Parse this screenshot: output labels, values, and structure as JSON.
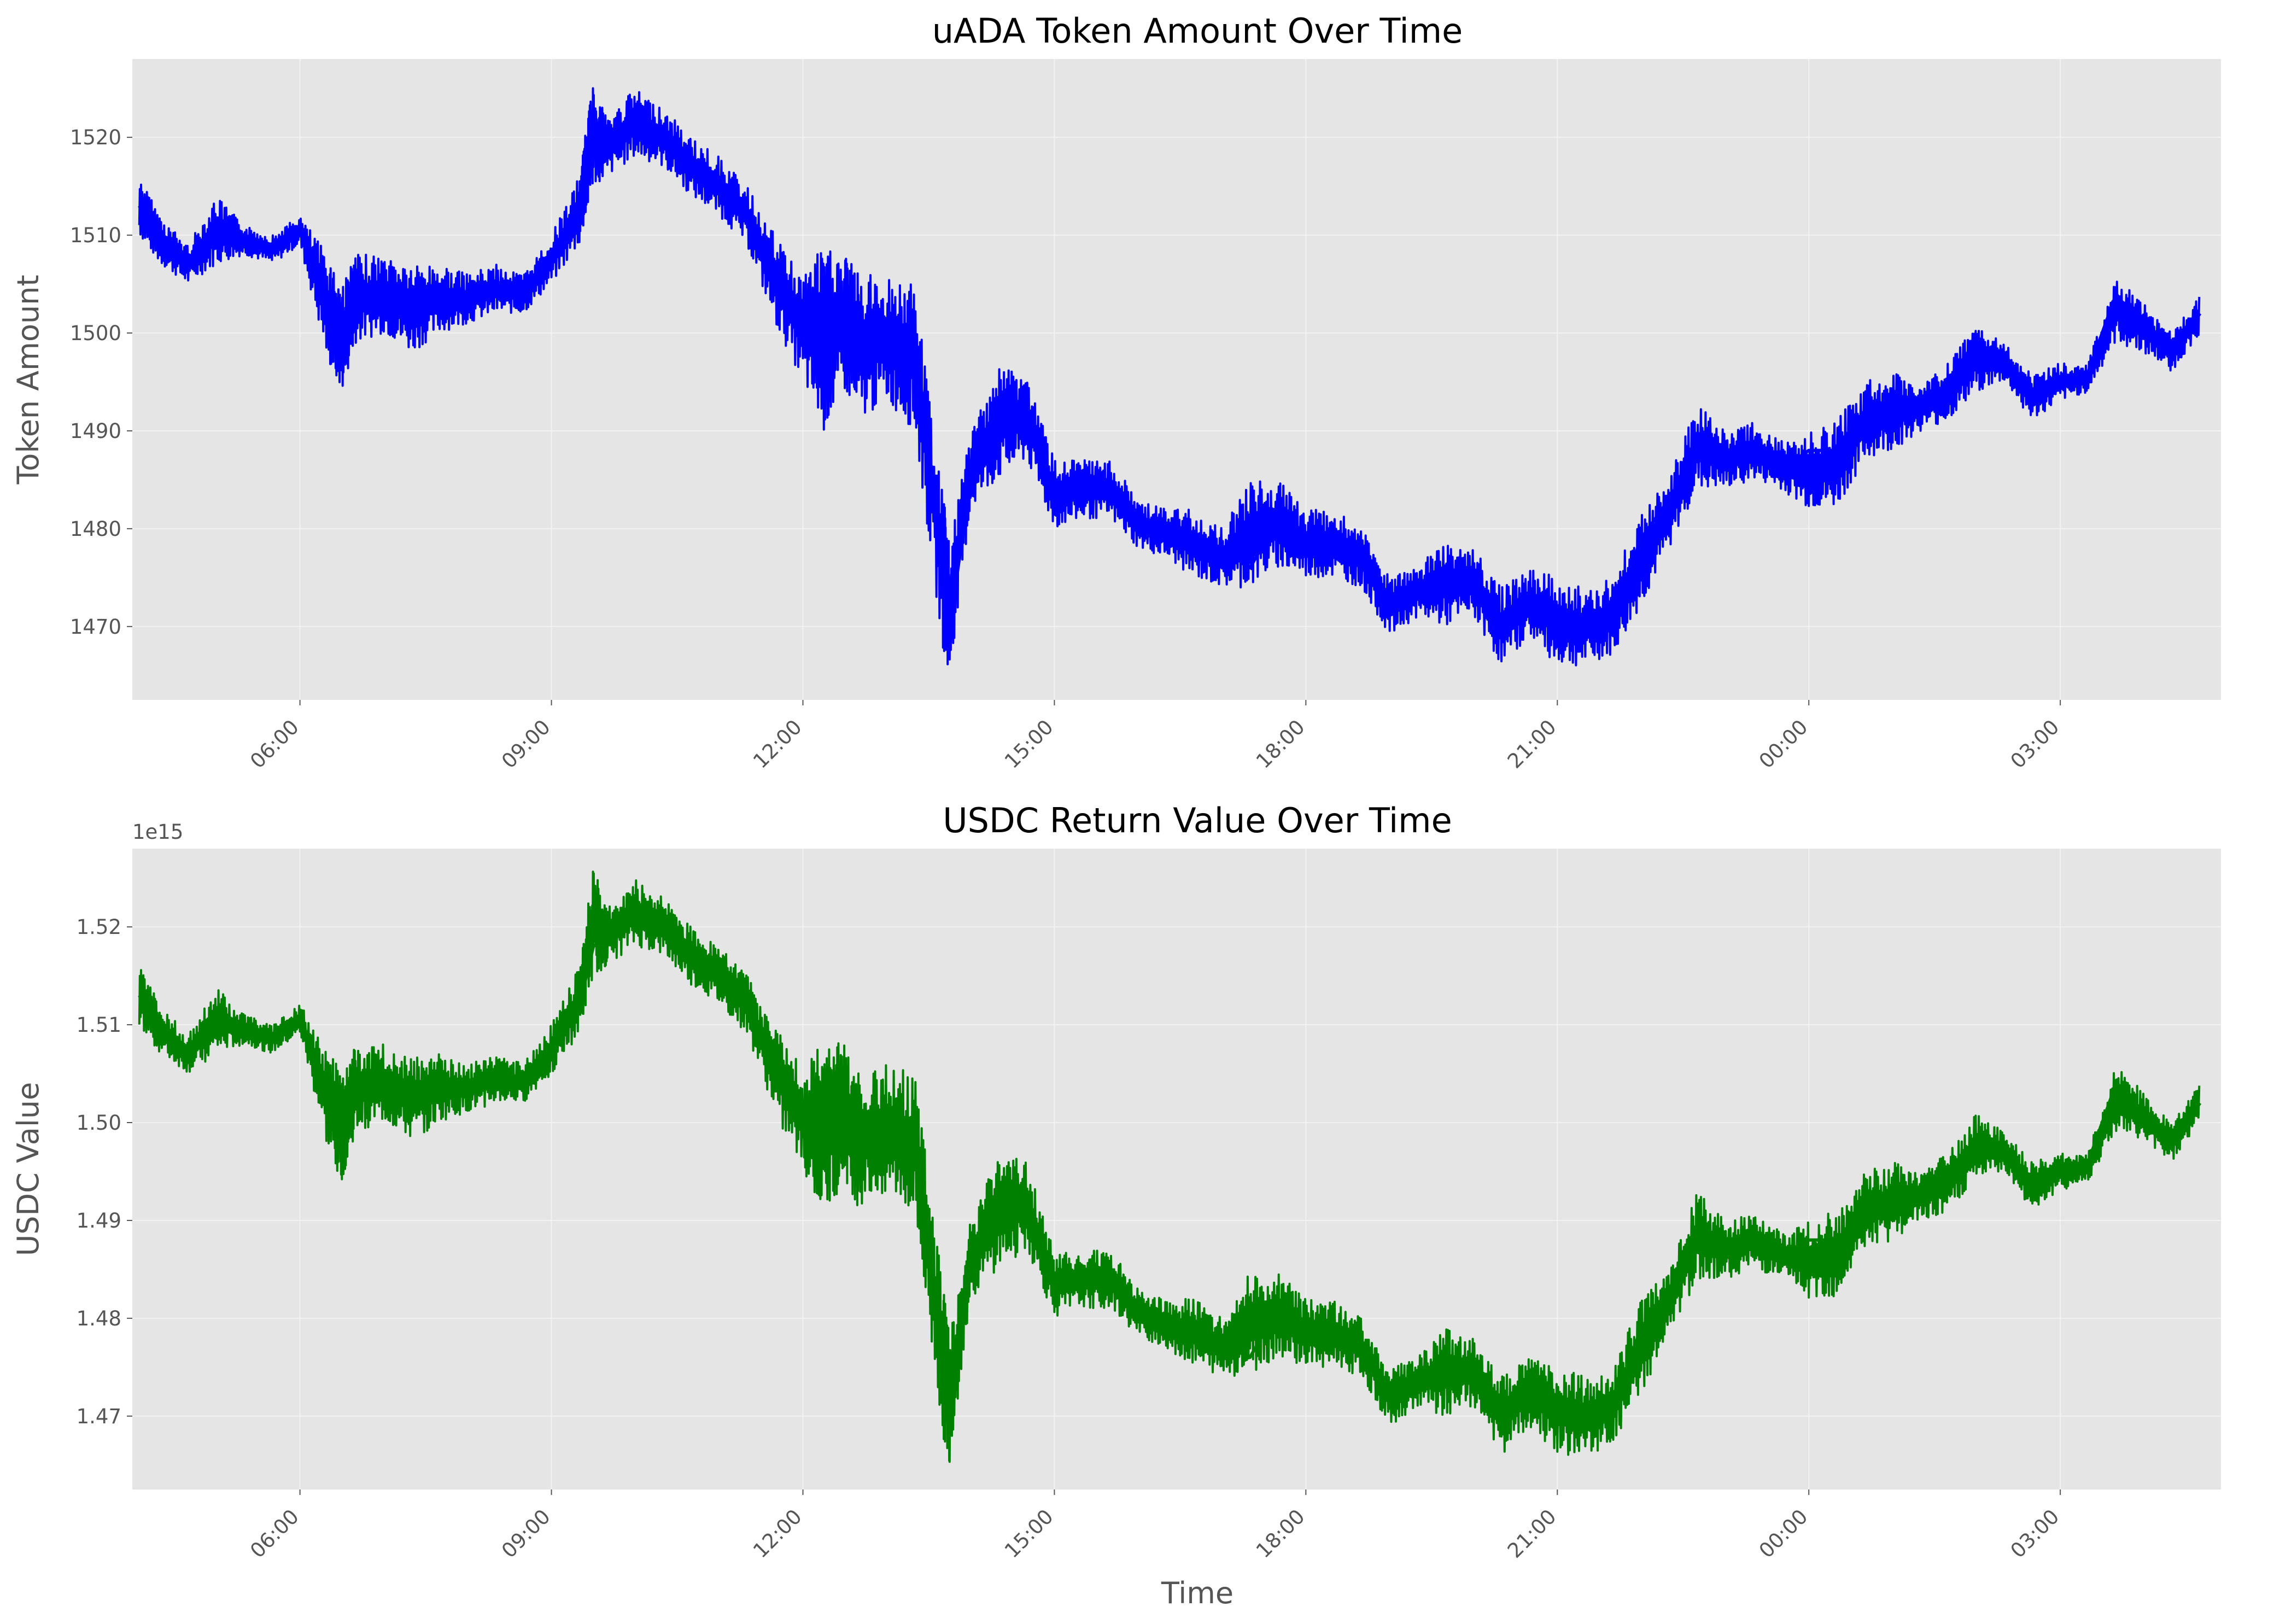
{
  "chart_data": [
    {
      "type": "line",
      "title": "uADA Token Amount Over Time",
      "xlabel": "",
      "ylabel": "Token Amount",
      "color": "#0000ff",
      "x_ticks": [
        "06:00",
        "09:00",
        "12:00",
        "15:00",
        "18:00",
        "21:00",
        "00:00",
        "03:00"
      ],
      "y_ticks": [
        "1470",
        "1480",
        "1490",
        "1500",
        "1510",
        "1520"
      ],
      "xlim": [
        "04:00",
        "28:55"
      ],
      "ylim": [
        1462.5,
        1528
      ],
      "grid": true,
      "x": [
        "04:05",
        "04:20",
        "04:40",
        "05:00",
        "05:20",
        "05:40",
        "06:00",
        "06:20",
        "06:30",
        "06:40",
        "07:00",
        "07:20",
        "07:40",
        "08:00",
        "08:20",
        "08:40",
        "09:00",
        "09:20",
        "09:30",
        "09:40",
        "10:00",
        "10:20",
        "10:40",
        "11:00",
        "11:20",
        "11:40",
        "12:00",
        "12:15",
        "12:30",
        "12:40",
        "13:00",
        "13:20",
        "13:40",
        "13:45",
        "14:00",
        "14:20",
        "14:40",
        "15:00",
        "15:20",
        "15:40",
        "16:00",
        "16:20",
        "16:40",
        "17:00",
        "17:20",
        "17:40",
        "18:00",
        "18:20",
        "18:40",
        "19:00",
        "19:20",
        "19:40",
        "20:00",
        "20:20",
        "20:40",
        "21:00",
        "21:20",
        "21:40",
        "22:00",
        "22:20",
        "22:40",
        "23:00",
        "23:20",
        "23:40",
        "24:00",
        "24:20",
        "24:40",
        "25:00",
        "25:20",
        "25:40",
        "26:00",
        "26:20",
        "26:40",
        "27:00",
        "27:20",
        "27:40",
        "28:00",
        "28:20",
        "28:40"
      ],
      "y": [
        1513,
        1509,
        1507,
        1511,
        1510,
        1509,
        1511,
        1503,
        1499,
        1504,
        1505,
        1503,
        1504,
        1503,
        1505,
        1504,
        1507,
        1512,
        1518,
        1519,
        1522,
        1520,
        1517,
        1515,
        1512,
        1507,
        1502,
        1500,
        1502,
        1499,
        1501,
        1500,
        1476,
        1470,
        1485,
        1489,
        1492,
        1484,
        1485,
        1485,
        1481,
        1480,
        1479,
        1478,
        1476,
        1481,
        1478,
        1478,
        1477,
        1472,
        1474,
        1473,
        1475,
        1470,
        1473,
        1472,
        1471,
        1471,
        1479,
        1483,
        1488,
        1487,
        1488,
        1486,
        1488,
        1488,
        1491,
        1491,
        1493,
        1494,
        1497,
        1498,
        1493,
        1495,
        1496,
        1504,
        1500,
        1498,
        1502
      ],
      "series": [
        {
          "values_band": [
            [
              1510,
              1516
            ],
            [
              1507,
              1512
            ],
            [
              1505,
              1509
            ],
            [
              1507,
              1514
            ],
            [
              1508,
              1511
            ],
            [
              1507,
              1510
            ],
            [
              1509,
              1512
            ],
            [
              1497,
              1508
            ],
            [
              1494,
              1505
            ],
            [
              1499,
              1508
            ],
            [
              1500,
              1508
            ],
            [
              1498,
              1507
            ],
            [
              1500,
              1507
            ],
            [
              1501,
              1506
            ],
            [
              1502,
              1507
            ],
            [
              1502,
              1506
            ],
            [
              1505,
              1510
            ],
            [
              1509,
              1516
            ],
            [
              1515,
              1526
            ],
            [
              1516,
              1522
            ],
            [
              1518,
              1525
            ],
            [
              1517,
              1523
            ],
            [
              1514,
              1520
            ],
            [
              1512,
              1518
            ],
            [
              1509,
              1515
            ],
            [
              1501,
              1510
            ],
            [
              1495,
              1506
            ],
            [
              1490,
              1509
            ],
            [
              1494,
              1508
            ],
            [
              1491,
              1506
            ],
            [
              1493,
              1506
            ],
            [
              1490,
              1505
            ],
            [
              1468,
              1484
            ],
            [
              1465,
              1478
            ],
            [
              1482,
              1490
            ],
            [
              1485,
              1497
            ],
            [
              1487,
              1496
            ],
            [
              1480,
              1487
            ],
            [
              1481,
              1487
            ],
            [
              1481,
              1487
            ],
            [
              1478,
              1483
            ],
            [
              1477,
              1482
            ],
            [
              1475,
              1482
            ],
            [
              1474,
              1480
            ],
            [
              1474,
              1485
            ],
            [
              1476,
              1485
            ],
            [
              1475,
              1482
            ],
            [
              1475,
              1482
            ],
            [
              1474,
              1480
            ],
            [
              1469,
              1475
            ],
            [
              1471,
              1476
            ],
            [
              1470,
              1479
            ],
            [
              1471,
              1478
            ],
            [
              1466,
              1474
            ],
            [
              1469,
              1476
            ],
            [
              1466,
              1475
            ],
            [
              1466,
              1474
            ],
            [
              1467,
              1475
            ],
            [
              1472,
              1482
            ],
            [
              1478,
              1485
            ],
            [
              1484,
              1493
            ],
            [
              1484,
              1490
            ],
            [
              1485,
              1491
            ],
            [
              1484,
              1489
            ],
            [
              1482,
              1490
            ],
            [
              1482,
              1491
            ],
            [
              1487,
              1495
            ],
            [
              1488,
              1496
            ],
            [
              1490,
              1495
            ],
            [
              1491,
              1497
            ],
            [
              1494,
              1501
            ],
            [
              1495,
              1499
            ],
            [
              1491,
              1496
            ],
            [
              1493,
              1497
            ],
            [
              1494,
              1497
            ],
            [
              1499,
              1506
            ],
            [
              1498,
              1503
            ],
            [
              1496,
              1500
            ],
            [
              1500,
              1504
            ]
          ]
        }
      ]
    },
    {
      "type": "line",
      "title": "USDC Return Value Over Time",
      "xlabel": "Time",
      "ylabel": "USDC Value",
      "offset_text": "1e15",
      "color": "#008000",
      "x_ticks": [
        "06:00",
        "09:00",
        "12:00",
        "15:00",
        "18:00",
        "21:00",
        "00:00",
        "03:00"
      ],
      "y_ticks": [
        "1.47",
        "1.48",
        "1.49",
        "1.50",
        "1.51",
        "1.52"
      ],
      "xlim": [
        "04:00",
        "28:55"
      ],
      "ylim": [
        1.4625,
        1.528
      ],
      "grid": true,
      "x": [
        "04:05",
        "04:20",
        "04:40",
        "05:00",
        "05:20",
        "05:40",
        "06:00",
        "06:20",
        "06:30",
        "06:40",
        "07:00",
        "07:20",
        "07:40",
        "08:00",
        "08:20",
        "08:40",
        "09:00",
        "09:20",
        "09:30",
        "09:40",
        "10:00",
        "10:20",
        "10:40",
        "11:00",
        "11:20",
        "11:40",
        "12:00",
        "12:15",
        "12:30",
        "12:40",
        "13:00",
        "13:20",
        "13:40",
        "13:45",
        "14:00",
        "14:20",
        "14:40",
        "15:00",
        "15:20",
        "15:40",
        "16:00",
        "16:20",
        "16:40",
        "17:00",
        "17:20",
        "17:40",
        "18:00",
        "18:20",
        "18:40",
        "19:00",
        "19:20",
        "19:40",
        "20:00",
        "20:20",
        "20:40",
        "21:00",
        "21:20",
        "21:40",
        "22:00",
        "22:20",
        "22:40",
        "23:00",
        "23:20",
        "23:40",
        "24:00",
        "24:20",
        "24:40",
        "25:00",
        "25:20",
        "25:40",
        "26:00",
        "26:20",
        "26:40",
        "27:00",
        "27:20",
        "27:40",
        "28:00",
        "28:20",
        "28:40"
      ],
      "y": [
        1.513,
        1.509,
        1.507,
        1.511,
        1.51,
        1.509,
        1.511,
        1.503,
        1.499,
        1.504,
        1.505,
        1.503,
        1.504,
        1.503,
        1.505,
        1.504,
        1.507,
        1.512,
        1.518,
        1.519,
        1.522,
        1.52,
        1.517,
        1.515,
        1.512,
        1.507,
        1.502,
        1.5,
        1.502,
        1.499,
        1.501,
        1.5,
        1.476,
        1.47,
        1.485,
        1.489,
        1.492,
        1.484,
        1.485,
        1.485,
        1.481,
        1.48,
        1.479,
        1.478,
        1.476,
        1.481,
        1.478,
        1.478,
        1.477,
        1.472,
        1.474,
        1.473,
        1.475,
        1.47,
        1.473,
        1.472,
        1.471,
        1.471,
        1.479,
        1.483,
        1.488,
        1.487,
        1.488,
        1.486,
        1.488,
        1.488,
        1.491,
        1.491,
        1.493,
        1.494,
        1.497,
        1.498,
        1.493,
        1.495,
        1.496,
        1.504,
        1.5,
        1.498,
        1.502
      ],
      "series": [
        {
          "values_band": [
            [
              1.51,
              1.516
            ],
            [
              1.507,
              1.512
            ],
            [
              1.505,
              1.509
            ],
            [
              1.507,
              1.514
            ],
            [
              1.508,
              1.511
            ],
            [
              1.507,
              1.51
            ],
            [
              1.509,
              1.512
            ],
            [
              1.497,
              1.508
            ],
            [
              1.494,
              1.505
            ],
            [
              1.499,
              1.508
            ],
            [
              1.5,
              1.508
            ],
            [
              1.498,
              1.507
            ],
            [
              1.5,
              1.507
            ],
            [
              1.501,
              1.506
            ],
            [
              1.502,
              1.507
            ],
            [
              1.502,
              1.506
            ],
            [
              1.505,
              1.51
            ],
            [
              1.509,
              1.516
            ],
            [
              1.515,
              1.526
            ],
            [
              1.516,
              1.522
            ],
            [
              1.518,
              1.525
            ],
            [
              1.517,
              1.523
            ],
            [
              1.514,
              1.52
            ],
            [
              1.512,
              1.518
            ],
            [
              1.509,
              1.515
            ],
            [
              1.501,
              1.51
            ],
            [
              1.495,
              1.506
            ],
            [
              1.49,
              1.509
            ],
            [
              1.494,
              1.508
            ],
            [
              1.491,
              1.506
            ],
            [
              1.493,
              1.506
            ],
            [
              1.49,
              1.505
            ],
            [
              1.468,
              1.484
            ],
            [
              1.465,
              1.478
            ],
            [
              1.482,
              1.49
            ],
            [
              1.485,
              1.497
            ],
            [
              1.487,
              1.496
            ],
            [
              1.48,
              1.487
            ],
            [
              1.481,
              1.487
            ],
            [
              1.481,
              1.487
            ],
            [
              1.478,
              1.483
            ],
            [
              1.477,
              1.482
            ],
            [
              1.475,
              1.482
            ],
            [
              1.474,
              1.48
            ],
            [
              1.474,
              1.485
            ],
            [
              1.476,
              1.485
            ],
            [
              1.475,
              1.482
            ],
            [
              1.475,
              1.482
            ],
            [
              1.474,
              1.48
            ],
            [
              1.469,
              1.475
            ],
            [
              1.471,
              1.476
            ],
            [
              1.47,
              1.479
            ],
            [
              1.471,
              1.478
            ],
            [
              1.466,
              1.474
            ],
            [
              1.469,
              1.476
            ],
            [
              1.466,
              1.475
            ],
            [
              1.466,
              1.474
            ],
            [
              1.467,
              1.475
            ],
            [
              1.472,
              1.482
            ],
            [
              1.478,
              1.485
            ],
            [
              1.484,
              1.493
            ],
            [
              1.484,
              1.49
            ],
            [
              1.485,
              1.491
            ],
            [
              1.484,
              1.489
            ],
            [
              1.482,
              1.49
            ],
            [
              1.482,
              1.491
            ],
            [
              1.487,
              1.495
            ],
            [
              1.488,
              1.496
            ],
            [
              1.49,
              1.495
            ],
            [
              1.491,
              1.497
            ],
            [
              1.494,
              1.501
            ],
            [
              1.495,
              1.499
            ],
            [
              1.491,
              1.496
            ],
            [
              1.493,
              1.497
            ],
            [
              1.494,
              1.497
            ],
            [
              1.499,
              1.506
            ],
            [
              1.498,
              1.503
            ],
            [
              1.496,
              1.5
            ],
            [
              1.5,
              1.504
            ]
          ]
        }
      ]
    }
  ]
}
